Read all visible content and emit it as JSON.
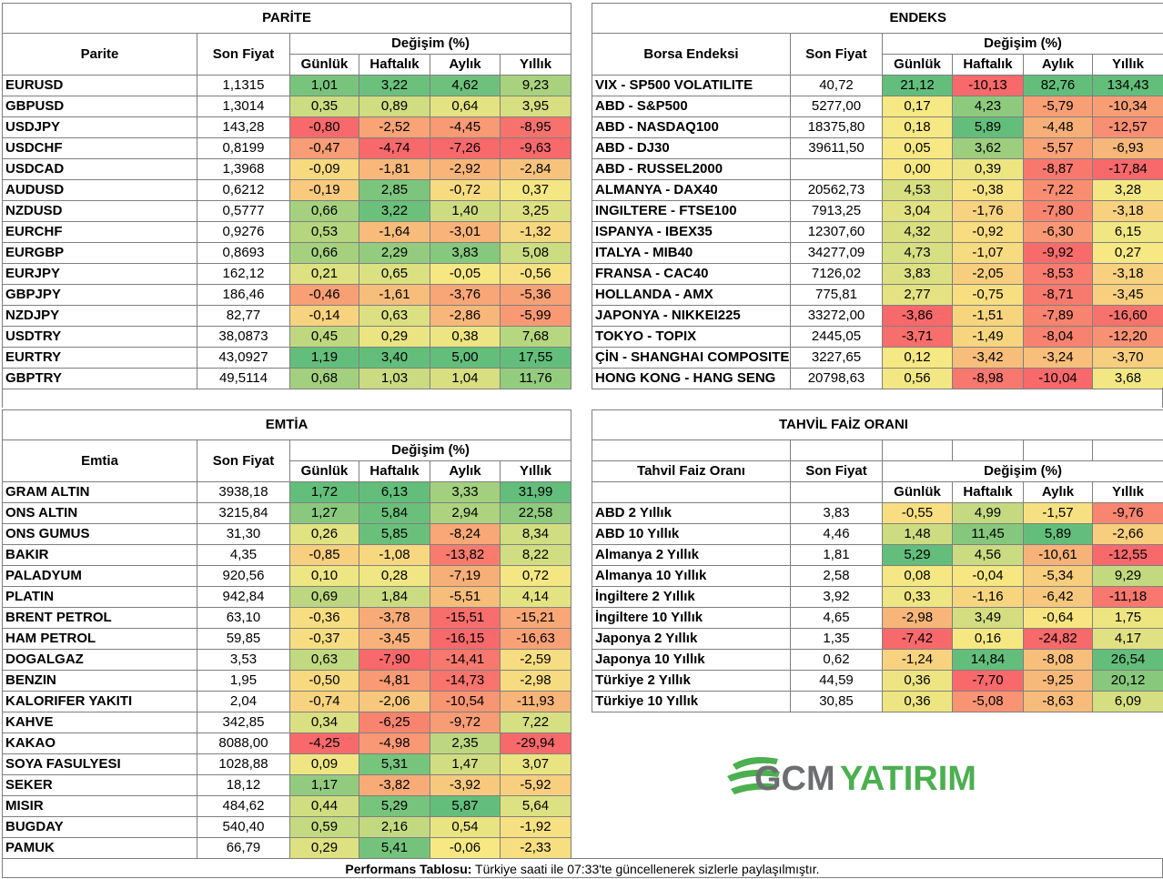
{
  "colors": {
    "pos_strong": "#63be7b",
    "pos_mid": "#a9d27f",
    "neutral": "#f7e883",
    "neg_mid": "#fbb079",
    "neg_strong": "#f8696b"
  },
  "headers": {
    "son_fiyat": "Son Fiyat",
    "degisim": "Değişim (%)",
    "gunluk": "Günlük",
    "haftalik": "Haftalık",
    "aylik": "Aylık",
    "yillik": "Yıllık"
  },
  "parite": {
    "title": "PARİTE",
    "col_name": "Parite",
    "rows": [
      {
        "name": "EURUSD",
        "price": "1,1315",
        "d": "1,01",
        "w": "3,22",
        "m": "4,62",
        "y": "9,23"
      },
      {
        "name": "GBPUSD",
        "price": "1,3014",
        "d": "0,35",
        "w": "0,89",
        "m": "0,64",
        "y": "3,95"
      },
      {
        "name": "USDJPY",
        "price": "143,28",
        "d": "-0,80",
        "w": "-2,52",
        "m": "-4,45",
        "y": "-8,95"
      },
      {
        "name": "USDCHF",
        "price": "0,8199",
        "d": "-0,47",
        "w": "-4,74",
        "m": "-7,26",
        "y": "-9,63"
      },
      {
        "name": "USDCAD",
        "price": "1,3968",
        "d": "-0,09",
        "w": "-1,81",
        "m": "-2,92",
        "y": "-2,84"
      },
      {
        "name": "AUDUSD",
        "price": "0,6212",
        "d": "-0,19",
        "w": "2,85",
        "m": "-0,72",
        "y": "0,37"
      },
      {
        "name": "NZDUSD",
        "price": "0,5777",
        "d": "0,66",
        "w": "3,22",
        "m": "1,40",
        "y": "3,25"
      },
      {
        "name": "EURCHF",
        "price": "0,9276",
        "d": "0,53",
        "w": "-1,64",
        "m": "-3,01",
        "y": "-1,32"
      },
      {
        "name": "EURGBP",
        "price": "0,8693",
        "d": "0,66",
        "w": "2,29",
        "m": "3,83",
        "y": "5,08"
      },
      {
        "name": "EURJPY",
        "price": "162,12",
        "d": "0,21",
        "w": "0,65",
        "m": "-0,05",
        "y": "-0,56"
      },
      {
        "name": "GBPJPY",
        "price": "186,46",
        "d": "-0,46",
        "w": "-1,61",
        "m": "-3,76",
        "y": "-5,36"
      },
      {
        "name": "NZDJPY",
        "price": "82,77",
        "d": "-0,14",
        "w": "0,63",
        "m": "-2,86",
        "y": "-5,99"
      },
      {
        "name": "USDTRY",
        "price": "38,0873",
        "d": "0,45",
        "w": "0,29",
        "m": "0,38",
        "y": "7,68"
      },
      {
        "name": "EURTRY",
        "price": "43,0927",
        "d": "1,19",
        "w": "3,40",
        "m": "5,00",
        "y": "17,55"
      },
      {
        "name": "GBPTRY",
        "price": "49,5114",
        "d": "0,68",
        "w": "1,03",
        "m": "1,04",
        "y": "11,76"
      }
    ]
  },
  "endeks": {
    "title": "ENDEKS",
    "col_name": "Borsa Endeksi",
    "rows": [
      {
        "name": "VIX  - SP500 VOLATILITE",
        "price": "40,72",
        "d": "21,12",
        "w": "-10,13",
        "m": "82,76",
        "y": "134,43"
      },
      {
        "name": "ABD - S&P500",
        "price": "5277,00",
        "d": "0,17",
        "w": "4,23",
        "m": "-5,79",
        "y": "-10,34"
      },
      {
        "name": "ABD - NASDAQ100",
        "price": "18375,80",
        "d": "0,18",
        "w": "5,89",
        "m": "-4,48",
        "y": "-12,57"
      },
      {
        "name": "ABD - DJ30",
        "price": "39611,50",
        "d": "0,05",
        "w": "3,62",
        "m": "-5,57",
        "y": "-6,93"
      },
      {
        "name": "ABD - RUSSEL2000",
        "price": "",
        "d": "0,00",
        "w": "0,39",
        "m": "-8,87",
        "y": "-17,84"
      },
      {
        "name": "ALMANYA - DAX40",
        "price": "20562,73",
        "d": "4,53",
        "w": "-0,38",
        "m": "-7,22",
        "y": "3,28"
      },
      {
        "name": "INGILTERE - FTSE100",
        "price": "7913,25",
        "d": "3,04",
        "w": "-1,76",
        "m": "-7,80",
        "y": "-3,18"
      },
      {
        "name": "ISPANYA - IBEX35",
        "price": "12307,60",
        "d": "4,32",
        "w": "-0,92",
        "m": "-6,30",
        "y": "6,15"
      },
      {
        "name": "ITALYA - MIB40",
        "price": "34277,09",
        "d": "4,73",
        "w": "-1,07",
        "m": "-9,92",
        "y": "0,27"
      },
      {
        "name": "FRANSA - CAC40",
        "price": "7126,02",
        "d": "3,83",
        "w": "-2,05",
        "m": "-8,53",
        "y": "-3,18"
      },
      {
        "name": "HOLLANDA - AMX",
        "price": "775,81",
        "d": "2,77",
        "w": "-0,75",
        "m": "-8,71",
        "y": "-3,45"
      },
      {
        "name": "JAPONYA - NIKKEI225",
        "price": "33272,00",
        "d": "-3,86",
        "w": "-1,51",
        "m": "-7,89",
        "y": "-16,60"
      },
      {
        "name": "TOKYO - TOPIX",
        "price": "2445,05",
        "d": "-3,71",
        "w": "-1,49",
        "m": "-8,04",
        "y": "-12,20"
      },
      {
        "name": "ÇİN - SHANGHAI COMPOSITE",
        "price": "3227,65",
        "d": "0,12",
        "w": "-3,42",
        "m": "-3,24",
        "y": "-3,70"
      },
      {
        "name": "HONG KONG - HANG SENG",
        "price": "20798,63",
        "d": "0,56",
        "w": "-8,98",
        "m": "-10,04",
        "y": "3,68"
      }
    ]
  },
  "emtia": {
    "title": "EMTİA",
    "col_name": "Emtia",
    "rows": [
      {
        "name": "GRAM ALTIN",
        "price": "3938,18",
        "d": "1,72",
        "w": "6,13",
        "m": "3,33",
        "y": "31,99"
      },
      {
        "name": "ONS ALTIN",
        "price": "3215,84",
        "d": "1,27",
        "w": "5,84",
        "m": "2,94",
        "y": "22,58"
      },
      {
        "name": "ONS GUMUS",
        "price": "31,30",
        "d": "0,26",
        "w": "5,85",
        "m": "-8,24",
        "y": "8,34"
      },
      {
        "name": "BAKIR",
        "price": "4,35",
        "d": "-0,85",
        "w": "-1,08",
        "m": "-13,82",
        "y": "8,22"
      },
      {
        "name": "PALADYUM",
        "price": "920,56",
        "d": "0,10",
        "w": "0,28",
        "m": "-7,19",
        "y": "0,72"
      },
      {
        "name": "PLATIN",
        "price": "942,84",
        "d": "0,69",
        "w": "1,84",
        "m": "-5,51",
        "y": "4,14"
      },
      {
        "name": "BRENT PETROL",
        "price": "63,10",
        "d": "-0,36",
        "w": "-3,78",
        "m": "-15,51",
        "y": "-15,21"
      },
      {
        "name": "HAM PETROL",
        "price": "59,85",
        "d": "-0,37",
        "w": "-3,45",
        "m": "-16,15",
        "y": "-16,63"
      },
      {
        "name": "DOGALGAZ",
        "price": "3,53",
        "d": "0,63",
        "w": "-7,90",
        "m": "-14,41",
        "y": "-2,59"
      },
      {
        "name": "BENZIN",
        "price": "1,95",
        "d": "-0,50",
        "w": "-4,81",
        "m": "-14,73",
        "y": "-2,98"
      },
      {
        "name": "KALORIFER YAKITI",
        "price": "2,04",
        "d": "-0,74",
        "w": "-2,06",
        "m": "-10,54",
        "y": "-11,93"
      },
      {
        "name": "KAHVE",
        "price": "342,85",
        "d": "0,34",
        "w": "-6,25",
        "m": "-9,72",
        "y": "7,22"
      },
      {
        "name": "KAKAO",
        "price": "8088,00",
        "d": "-4,25",
        "w": "-4,98",
        "m": "2,35",
        "y": "-29,94"
      },
      {
        "name": "SOYA FASULYESI",
        "price": "1028,88",
        "d": "0,09",
        "w": "5,31",
        "m": "1,47",
        "y": "3,07"
      },
      {
        "name": "SEKER",
        "price": "18,12",
        "d": "1,17",
        "w": "-3,82",
        "m": "-3,92",
        "y": "-5,92"
      },
      {
        "name": "MISIR",
        "price": "484,62",
        "d": "0,44",
        "w": "5,29",
        "m": "5,87",
        "y": "5,64"
      },
      {
        "name": "BUGDAY",
        "price": "540,40",
        "d": "0,59",
        "w": "2,16",
        "m": "0,54",
        "y": "-1,92"
      },
      {
        "name": "PAMUK",
        "price": "66,79",
        "d": "0,29",
        "w": "5,41",
        "m": "-0,06",
        "y": "-2,33"
      }
    ]
  },
  "tahvil": {
    "title": "TAHVİL FAİZ ORANI",
    "col_name": "Tahvil Faiz Oranı",
    "rows": [
      {
        "name": "ABD 2 Yıllık",
        "price": "3,83",
        "d": "-0,55",
        "w": "4,99",
        "m": "-1,57",
        "y": "-9,76"
      },
      {
        "name": "ABD 10 Yıllık",
        "price": "4,46",
        "d": "1,48",
        "w": "11,45",
        "m": "5,89",
        "y": "-2,66"
      },
      {
        "name": "Almanya 2 Yıllık",
        "price": "1,81",
        "d": "5,29",
        "w": "4,56",
        "m": "-10,61",
        "y": "-12,55"
      },
      {
        "name": "Almanya 10 Yıllık",
        "price": "2,58",
        "d": "0,08",
        "w": "-0,04",
        "m": "-5,34",
        "y": "9,29"
      },
      {
        "name": "İngiltere 2 Yıllık",
        "price": "3,92",
        "d": "0,33",
        "w": "-1,16",
        "m": "-6,42",
        "y": "-11,18"
      },
      {
        "name": "İngiltere 10 Yıllık",
        "price": "4,65",
        "d": "-2,98",
        "w": "3,49",
        "m": "-0,64",
        "y": "1,75"
      },
      {
        "name": "Japonya 2 Yıllık",
        "price": "1,35",
        "d": "-7,42",
        "w": "0,16",
        "m": "-24,82",
        "y": "4,17"
      },
      {
        "name": "Japonya 10 Yıllık",
        "price": "0,62",
        "d": "-1,24",
        "w": "14,84",
        "m": "-8,08",
        "y": "26,54"
      },
      {
        "name": "Türkiye 2 Yıllık",
        "price": "44,59",
        "d": "0,36",
        "w": "-7,70",
        "m": "-9,25",
        "y": "20,12"
      },
      {
        "name": "Türkiye 10 Yıllık",
        "price": "30,85",
        "d": "0,36",
        "w": "-5,08",
        "m": "-8,63",
        "y": "6,09"
      }
    ]
  },
  "logo": {
    "part1": "GCM",
    "part2": "YATIRIM",
    "green": "#4caf50",
    "grey": "#6d6e71"
  },
  "footer": {
    "bold": "Performans Tablosu:",
    "text": " Türkiye saati ile 07:33'te güncellenerek sizlerle paylaşılmıştır."
  }
}
